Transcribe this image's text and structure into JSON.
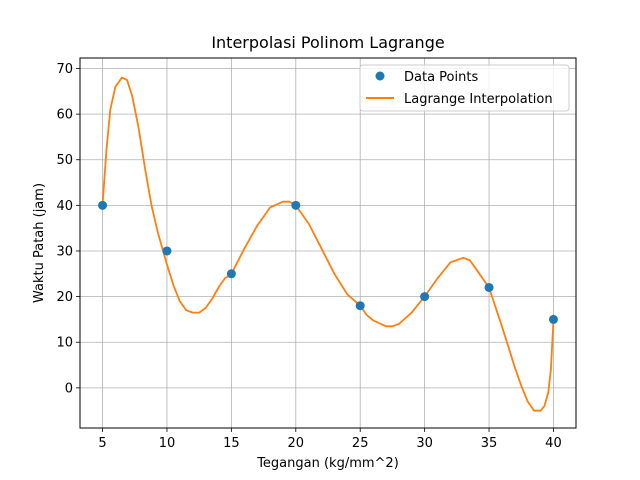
{
  "chart_data": {
    "type": "line",
    "title": "Interpolasi Polinom Lagrange",
    "xlabel": "Tegangan (kg/mm^2)",
    "ylabel": "Waktu Patah (jam)",
    "xlim": [
      3.25,
      41.75
    ],
    "ylim": [
      -8.8,
      72.3
    ],
    "xticks": [
      5,
      10,
      15,
      20,
      25,
      30,
      35,
      40
    ],
    "yticks": [
      0,
      10,
      20,
      30,
      40,
      50,
      60,
      70
    ],
    "grid": true,
    "legend_position": "top-right",
    "series": [
      {
        "name": "Data Points",
        "kind": "scatter",
        "color": "#1f77b4",
        "x": [
          5,
          10,
          15,
          20,
          25,
          30,
          35,
          40
        ],
        "y": [
          40,
          30,
          25,
          40,
          18,
          20,
          22,
          15
        ]
      },
      {
        "name": "Lagrange Interpolation",
        "kind": "line",
        "color": "#ff7f0e",
        "x": [
          5,
          5.3,
          5.6,
          6.0,
          6.5,
          6.9,
          7.3,
          7.8,
          8.3,
          8.8,
          9.3,
          10,
          10.5,
          11,
          11.5,
          12,
          12.5,
          13,
          13.5,
          14,
          14.5,
          15,
          16,
          17,
          18,
          19,
          19.5,
          20,
          21,
          22,
          23,
          24,
          25,
          25.5,
          26,
          27,
          27.5,
          28,
          29,
          30,
          31,
          32,
          33,
          33.5,
          34,
          35,
          36,
          36.5,
          37,
          37.5,
          38,
          38.5,
          39,
          39.3,
          39.6,
          39.8,
          40
        ],
        "y": [
          40,
          52,
          61,
          66,
          68,
          67.5,
          64,
          57,
          48,
          40,
          34,
          27,
          22.5,
          19,
          17,
          16.5,
          16.5,
          17.5,
          19.5,
          22,
          24,
          25,
          30.5,
          35.5,
          39.5,
          40.8,
          40.8,
          40,
          36,
          30.5,
          25,
          20.5,
          18,
          16,
          14.8,
          13.5,
          13.5,
          14,
          16.5,
          20,
          24,
          27.5,
          28.5,
          28,
          26,
          22,
          13.5,
          9,
          4.5,
          0.5,
          -3,
          -5,
          -5,
          -4,
          -1,
          4,
          15
        ]
      }
    ]
  }
}
